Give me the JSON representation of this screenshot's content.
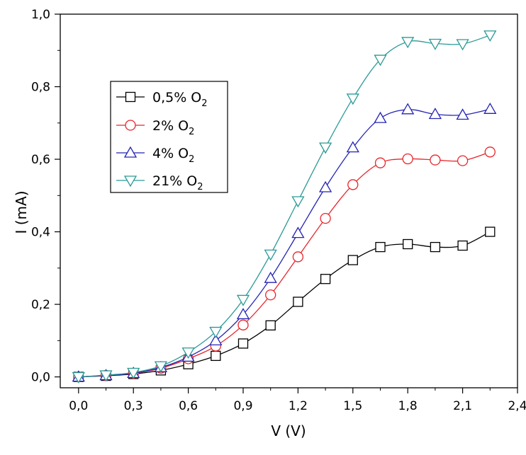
{
  "chart_data": {
    "type": "line",
    "title": "",
    "xlabel": "V (V)",
    "ylabel": "I (mA)",
    "xlim": [
      -0.1,
      2.4
    ],
    "ylim": [
      -0.03,
      1.0
    ],
    "xticks": [
      0.0,
      0.3,
      0.6,
      0.9,
      1.2,
      1.5,
      1.8,
      2.1,
      2.4
    ],
    "xtick_labels": [
      "0,0",
      "0,3",
      "0,6",
      "0,9",
      "1,2",
      "1,5",
      "1,8",
      "2,1",
      "2,4"
    ],
    "xminor": [
      0.15,
      0.45,
      0.75,
      1.05,
      1.35,
      1.65,
      1.95,
      2.25
    ],
    "yticks": [
      0.0,
      0.2,
      0.4,
      0.6,
      0.8,
      1.0
    ],
    "ytick_labels": [
      "0,0",
      "0,2",
      "0,4",
      "0,6",
      "0,8",
      "1,0"
    ],
    "yminor": [
      0.1,
      0.3,
      0.5,
      0.7,
      0.9
    ],
    "grid": false,
    "legend_position": "upper-left",
    "x": [
      0.0,
      0.15,
      0.3,
      0.45,
      0.6,
      0.75,
      0.9,
      1.05,
      1.2,
      1.35,
      1.5,
      1.65,
      1.8,
      1.95,
      2.1,
      2.25
    ],
    "series": [
      {
        "name_main": "0,5% O",
        "name_sub": "2",
        "color": "#000000",
        "marker": "square",
        "values": [
          0.0,
          0.003,
          0.008,
          0.018,
          0.035,
          0.058,
          0.092,
          0.142,
          0.207,
          0.27,
          0.322,
          0.358,
          0.366,
          0.358,
          0.362,
          0.4
        ]
      },
      {
        "name_main": "2% O",
        "name_sub": "2",
        "color": "#e8262b",
        "marker": "circle",
        "values": [
          0.0,
          0.004,
          0.01,
          0.024,
          0.05,
          0.085,
          0.143,
          0.226,
          0.331,
          0.437,
          0.53,
          0.59,
          0.601,
          0.598,
          0.596,
          0.62
        ]
      },
      {
        "name_main": "4% O",
        "name_sub": "2",
        "color": "#2323b4",
        "marker": "triangle-up",
        "values": [
          0.0,
          0.004,
          0.01,
          0.026,
          0.055,
          0.1,
          0.172,
          0.272,
          0.396,
          0.522,
          0.632,
          0.713,
          0.737,
          0.724,
          0.722,
          0.738
        ]
      },
      {
        "name_main": "21% O",
        "name_sub": "2",
        "color": "#2a9a96",
        "marker": "triangle-down",
        "values": [
          0.0,
          0.005,
          0.012,
          0.03,
          0.068,
          0.125,
          0.213,
          0.338,
          0.485,
          0.633,
          0.768,
          0.875,
          0.924,
          0.919,
          0.918,
          0.942
        ]
      }
    ]
  }
}
